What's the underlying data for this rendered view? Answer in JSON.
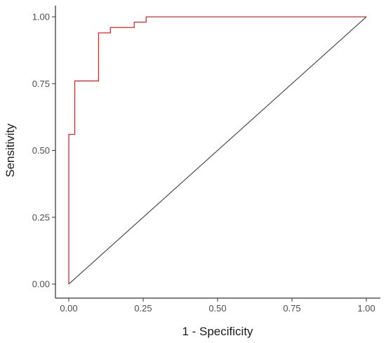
{
  "chart_data": {
    "type": "line",
    "title": "",
    "xlabel": "1 - Specificity",
    "ylabel": "Sensitivity",
    "xlim": [
      0,
      1
    ],
    "ylim": [
      0,
      1
    ],
    "x_ticks": [
      "0.00",
      "0.25",
      "0.50",
      "0.75",
      "1.00"
    ],
    "y_ticks": [
      "0.00",
      "0.25",
      "0.50",
      "0.75",
      "1.00"
    ],
    "grid": false,
    "legend": "none",
    "series": [
      {
        "color": "#e8262a",
        "style": "step",
        "x": [
          0.0,
          0.0,
          0.02,
          0.02,
          0.1,
          0.1,
          0.14,
          0.14,
          0.22,
          0.22,
          0.26,
          0.26,
          1.0
        ],
        "y": [
          0.0,
          0.56,
          0.56,
          0.76,
          0.76,
          0.94,
          0.94,
          0.96,
          0.96,
          0.98,
          0.98,
          1.0,
          1.0
        ]
      },
      {
        "color": "#4d4d4d",
        "style": "diagonal",
        "x": [
          0.0,
          1.0
        ],
        "y": [
          0.0,
          1.0
        ]
      }
    ]
  }
}
